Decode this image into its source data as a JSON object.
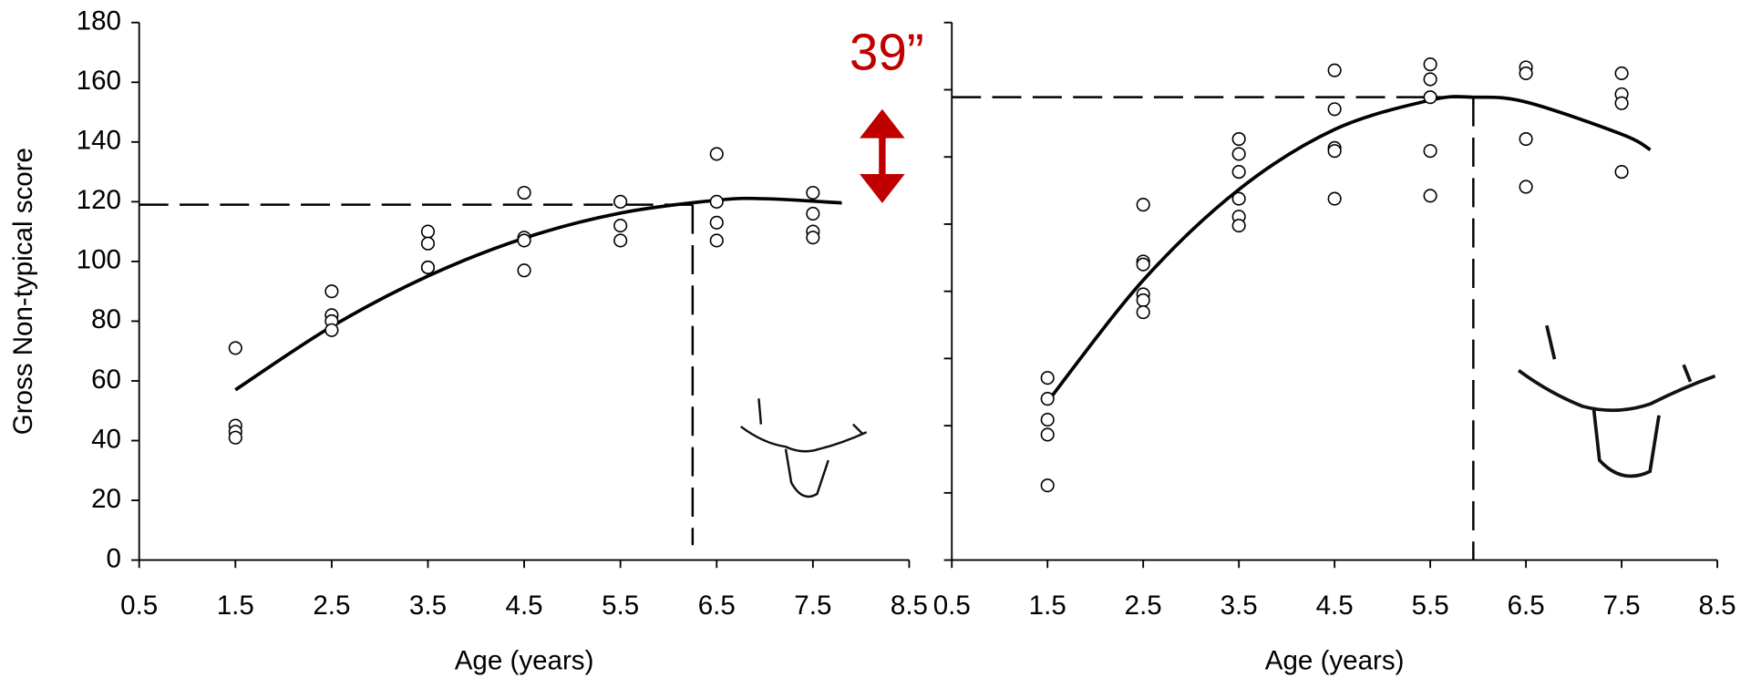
{
  "chart_data": [
    {
      "type": "scatter",
      "ylabel": "Gross Non-typical score",
      "xlabel": "Age (years)",
      "xlim": [
        0.5,
        8.5
      ],
      "xticks": [
        0.5,
        1.5,
        2.5,
        3.5,
        4.5,
        5.5,
        6.5,
        7.5,
        8.5
      ],
      "ylim": [
        0,
        180
      ],
      "yticks": [
        0,
        20,
        40,
        60,
        80,
        100,
        120,
        140,
        160,
        180
      ],
      "show_ytick_labels": true,
      "x": [
        1.5,
        1.5,
        1.5,
        1.5,
        2.5,
        2.5,
        2.5,
        2.5,
        3.5,
        3.5,
        3.5,
        3.5,
        4.5,
        4.5,
        4.5,
        4.5,
        5.5,
        5.5,
        5.5,
        6.5,
        6.5,
        6.5,
        6.5,
        7.5,
        7.5,
        7.5,
        7.5
      ],
      "y": [
        71,
        45,
        43,
        41,
        90,
        82,
        80,
        77,
        110,
        106,
        98,
        98,
        123,
        108,
        107,
        97,
        120,
        112,
        107,
        136,
        120,
        113,
        107,
        123,
        116,
        110,
        108
      ],
      "fit": {
        "x": [
          1.5,
          2.5,
          3.5,
          4.5,
          5.5,
          6.5,
          7,
          7.8
        ],
        "y": [
          57,
          78.2,
          95.1,
          107.8,
          116.2,
          120.5,
          121,
          119.6
        ]
      },
      "hline": {
        "y": 119,
        "x_end": 6.25
      },
      "vline": {
        "x": 6.25,
        "y_end": 5
      },
      "annotation": "39”"
    },
    {
      "type": "scatter",
      "xlabel": "Age (years)",
      "xlim": [
        0.5,
        8.5
      ],
      "xticks": [
        0.5,
        1.5,
        2.5,
        3.5,
        4.5,
        5.5,
        6.5,
        7.5,
        8.5
      ],
      "ylim": [
        0,
        180
      ],
      "yticks": [
        0,
        22.5,
        45,
        67.5,
        90,
        112.5,
        135,
        157.5,
        180
      ],
      "show_ytick_labels": false,
      "x": [
        1.5,
        1.5,
        1.5,
        1.5,
        1.5,
        2.5,
        2.5,
        2.5,
        2.5,
        2.5,
        2.5,
        3.5,
        3.5,
        3.5,
        3.5,
        3.5,
        3.5,
        4.5,
        4.5,
        4.5,
        4.5,
        4.5,
        5.5,
        5.5,
        5.5,
        5.5,
        5.5,
        6.5,
        6.5,
        6.5,
        6.5,
        7.5,
        7.5,
        7.5,
        7.5
      ],
      "y": [
        61,
        54,
        47,
        42,
        25,
        119,
        100,
        99,
        89,
        87,
        83,
        141,
        136,
        130,
        121,
        115,
        112,
        164,
        151,
        138,
        137,
        121,
        166,
        161,
        155,
        137,
        122,
        165,
        163,
        141,
        125,
        163,
        156,
        153,
        130
      ],
      "fit": {
        "x": [
          1.5,
          2.5,
          3.5,
          4.5,
          5.5,
          5.95,
          6.5,
          7.5,
          7.8
        ],
        "y": [
          53,
          93.7,
          124.1,
          144.2,
          154,
          155,
          153.4,
          142.6,
          137.4
        ]
      },
      "hline": {
        "y": 155,
        "x_end": 5.95
      },
      "vline": {
        "x": 5.95,
        "y_end": 0
      }
    }
  ]
}
